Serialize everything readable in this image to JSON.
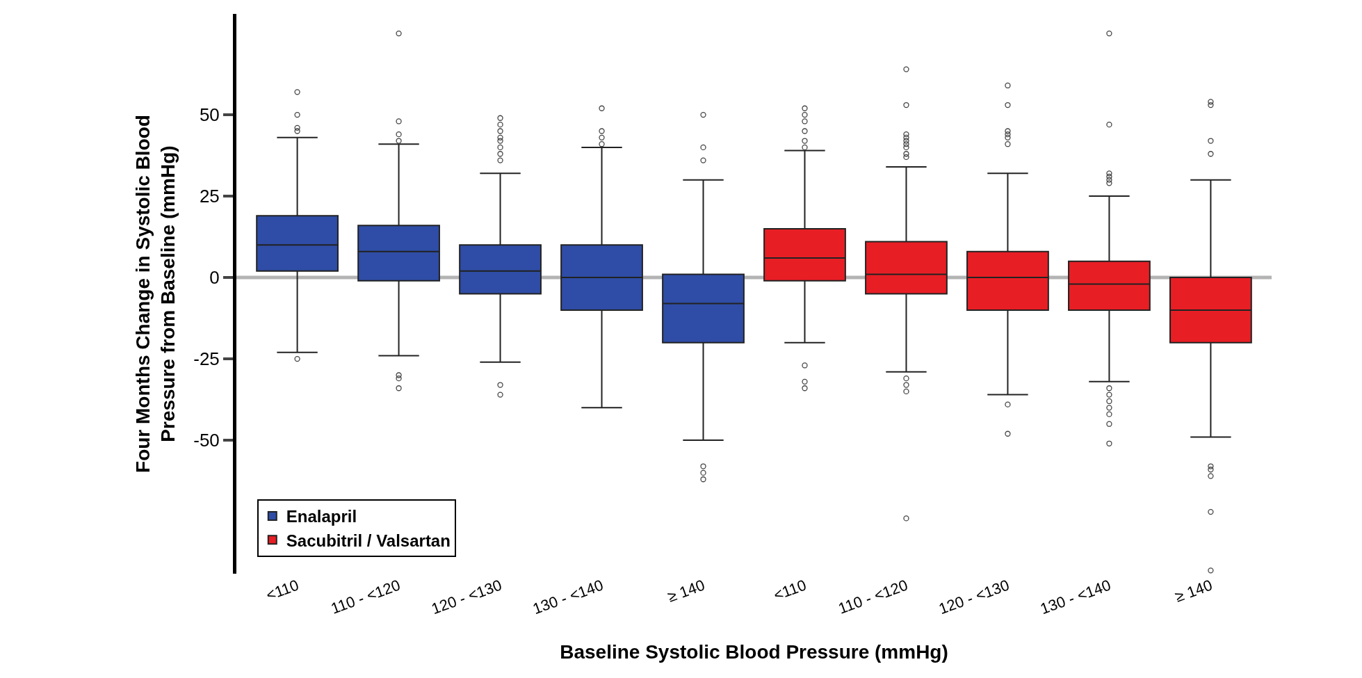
{
  "chart_data": {
    "type": "box",
    "xlabel": "Baseline Systolic Blood Pressure (mmHg)",
    "ylabel": "Four Months Change in Systolic Blood\nPressure from Baseline (mmHg)",
    "categories": [
      "<110",
      "110 - <120",
      "120 - <130",
      "130 - <140",
      "≥ 140",
      "<110",
      "110 - <120",
      "120 - <130",
      "130 - <140",
      "≥ 140"
    ],
    "ylim": [
      -91,
      81
    ],
    "yticks": [
      -50,
      -25,
      0,
      25,
      50
    ],
    "legend": "bottom left",
    "grid": false,
    "ref_lines": [
      {
        "axis": "y",
        "value": 0,
        "color": "#b3b3b3"
      }
    ],
    "series": [
      {
        "name": "Enalapril",
        "color": "#2f4da6",
        "boxes": [
          {
            "low": -23,
            "q1": 2,
            "median": 10,
            "q3": 19,
            "high": 43,
            "outliers": [
              57,
              50,
              46,
              45,
              -25
            ]
          },
          {
            "low": -24,
            "q1": -1,
            "median": 8,
            "q3": 16,
            "high": 41,
            "outliers": [
              75,
              48,
              44,
              42,
              -30,
              -31,
              -34
            ]
          },
          {
            "low": -26,
            "q1": -5,
            "median": 2,
            "q3": 10,
            "high": 32,
            "outliers": [
              49,
              47,
              45,
              43,
              42,
              40,
              38,
              36,
              -33,
              -36
            ]
          },
          {
            "low": -40,
            "q1": -10,
            "median": 0,
            "q3": 10,
            "high": 40,
            "outliers": [
              52,
              45,
              43,
              41
            ]
          },
          {
            "low": -50,
            "q1": -20,
            "median": -8,
            "q3": 1,
            "high": 30,
            "outliers": [
              50,
              40,
              36,
              -58,
              -60,
              -62
            ]
          },
          null,
          null,
          null,
          null,
          null
        ]
      },
      {
        "name": "Sacubitril / Valsartan",
        "color": "#e81e25",
        "boxes": [
          null,
          null,
          null,
          null,
          null,
          {
            "low": -20,
            "q1": -1,
            "median": 6,
            "q3": 15,
            "high": 39,
            "outliers": [
              52,
              50,
              48,
              45,
              42,
              40,
              -27,
              -32,
              -34
            ]
          },
          {
            "low": -29,
            "q1": -5,
            "median": 1,
            "q3": 11,
            "high": 34,
            "outliers": [
              64,
              53,
              44,
              43,
              42,
              41,
              40,
              38,
              37,
              -31,
              -33,
              -35,
              -74
            ]
          },
          {
            "low": -36,
            "q1": -10,
            "median": 0,
            "q3": 8,
            "high": 32,
            "outliers": [
              59,
              53,
              45,
              44,
              43,
              41,
              -39,
              -48
            ]
          },
          {
            "low": -32,
            "q1": -10,
            "median": -2,
            "q3": 5,
            "high": 25,
            "outliers": [
              75,
              47,
              32,
              31,
              30,
              29,
              -34,
              -36,
              -38,
              -40,
              -42,
              -45,
              -51
            ]
          },
          {
            "low": -49,
            "q1": -20,
            "median": -10,
            "q3": 0,
            "high": 30,
            "outliers": [
              54,
              53,
              42,
              38,
              -58,
              -59,
              -61,
              -72,
              -90
            ]
          }
        ]
      }
    ]
  }
}
